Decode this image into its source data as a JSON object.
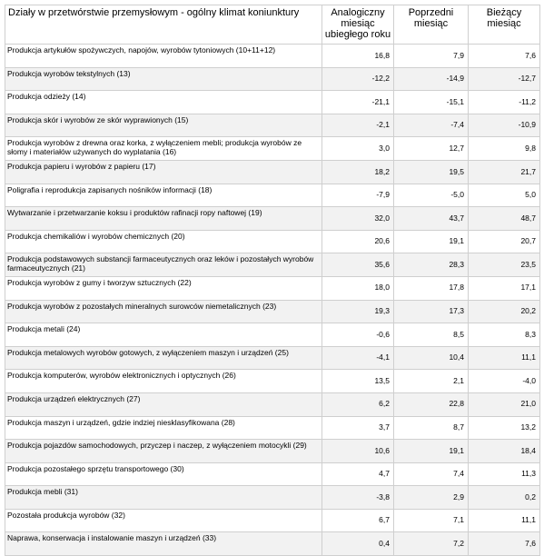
{
  "headers": {
    "category": "Działy w przetwórstwie przemysłowym - ogólny klimat koniunktury",
    "prev_year": "Analogiczny miesiąc ubiegłego roku",
    "prev_month": "Poprzedni miesiąc",
    "current": "Bieżący miesiąc"
  },
  "rows": [
    {
      "name": "Produkcja artykułów spożywczych, napojów, wyrobów tytoniowych (10+11+12)",
      "prev_year": "16,8",
      "prev_month": "7,9",
      "current": "7,6"
    },
    {
      "name": "Produkcja wyrobów tekstylnych (13)",
      "prev_year": "-12,2",
      "prev_month": "-14,9",
      "current": "-12,7"
    },
    {
      "name": "Produkcja odzieży (14)",
      "prev_year": "-21,1",
      "prev_month": "-15,1",
      "current": "-11,2"
    },
    {
      "name": "Produkcja skór i wyrobów ze skór wyprawionych (15)",
      "prev_year": "-2,1",
      "prev_month": "-7,4",
      "current": "-10,9"
    },
    {
      "name": "Produkcja wyrobów z drewna oraz korka, z wyłączeniem mebli; produkcja wyrobów ze słomy i materiałów używanych do wyplatania (16)",
      "prev_year": "3,0",
      "prev_month": "12,7",
      "current": "9,8"
    },
    {
      "name": "Produkcja papieru i wyrobów z papieru (17)",
      "prev_year": "18,2",
      "prev_month": "19,5",
      "current": "21,7"
    },
    {
      "name": "Poligrafia i reprodukcja zapisanych nośników informacji (18)",
      "prev_year": "-7,9",
      "prev_month": "-5,0",
      "current": "5,0"
    },
    {
      "name": "Wytwarzanie i przetwarzanie koksu i produktów rafinacji ropy naftowej (19)",
      "prev_year": "32,0",
      "prev_month": "43,7",
      "current": "48,7"
    },
    {
      "name": "Produkcja chemikaliów i wyrobów chemicznych (20)",
      "prev_year": "20,6",
      "prev_month": "19,1",
      "current": "20,7"
    },
    {
      "name": "Produkcja podstawowych substancji farmaceutycznych oraz leków i pozostałych wyrobów farmaceutycznych (21)",
      "prev_year": "35,6",
      "prev_month": "28,3",
      "current": "23,5"
    },
    {
      "name": "Produkcja wyrobów z gumy i tworzyw sztucznych (22)",
      "prev_year": "18,0",
      "prev_month": "17,8",
      "current": "17,1"
    },
    {
      "name": "Produkcja wyrobów z pozostałych mineralnych surowców niemetalicznych (23)",
      "prev_year": "19,3",
      "prev_month": "17,3",
      "current": "20,2"
    },
    {
      "name": "Produkcja metali (24)",
      "prev_year": "-0,6",
      "prev_month": "8,5",
      "current": "8,3"
    },
    {
      "name": "Produkcja metalowych wyrobów gotowych, z wyłączeniem maszyn i urządzeń (25)",
      "prev_year": "-4,1",
      "prev_month": "10,4",
      "current": "11,1"
    },
    {
      "name": "Produkcja komputerów, wyrobów elektronicznych i optycznych (26)",
      "prev_year": "13,5",
      "prev_month": "2,1",
      "current": "-4,0"
    },
    {
      "name": "Produkcja urządzeń elektrycznych (27)",
      "prev_year": "6,2",
      "prev_month": "22,8",
      "current": "21,0"
    },
    {
      "name": "Produkcja maszyn i urządzeń, gdzie indziej niesklasyfikowana (28)",
      "prev_year": "3,7",
      "prev_month": "8,7",
      "current": "13,2"
    },
    {
      "name": "Produkcja pojazdów samochodowych, przyczep i naczep, z wyłączeniem motocykli (29)",
      "prev_year": "10,6",
      "prev_month": "19,1",
      "current": "18,4"
    },
    {
      "name": "Produkcja pozostałego sprzętu transportowego (30)",
      "prev_year": "4,7",
      "prev_month": "7,4",
      "current": "11,3"
    },
    {
      "name": "Produkcja mebli (31)",
      "prev_year": "-3,8",
      "prev_month": "2,9",
      "current": "0,2"
    },
    {
      "name": "Pozostała produkcja wyrobów (32)",
      "prev_year": "6,7",
      "prev_month": "7,1",
      "current": "11,1"
    },
    {
      "name": "Naprawa, konserwacja i instalowanie maszyn i urządzeń (33)",
      "prev_year": "0,4",
      "prev_month": "7,2",
      "current": "7,6"
    }
  ]
}
